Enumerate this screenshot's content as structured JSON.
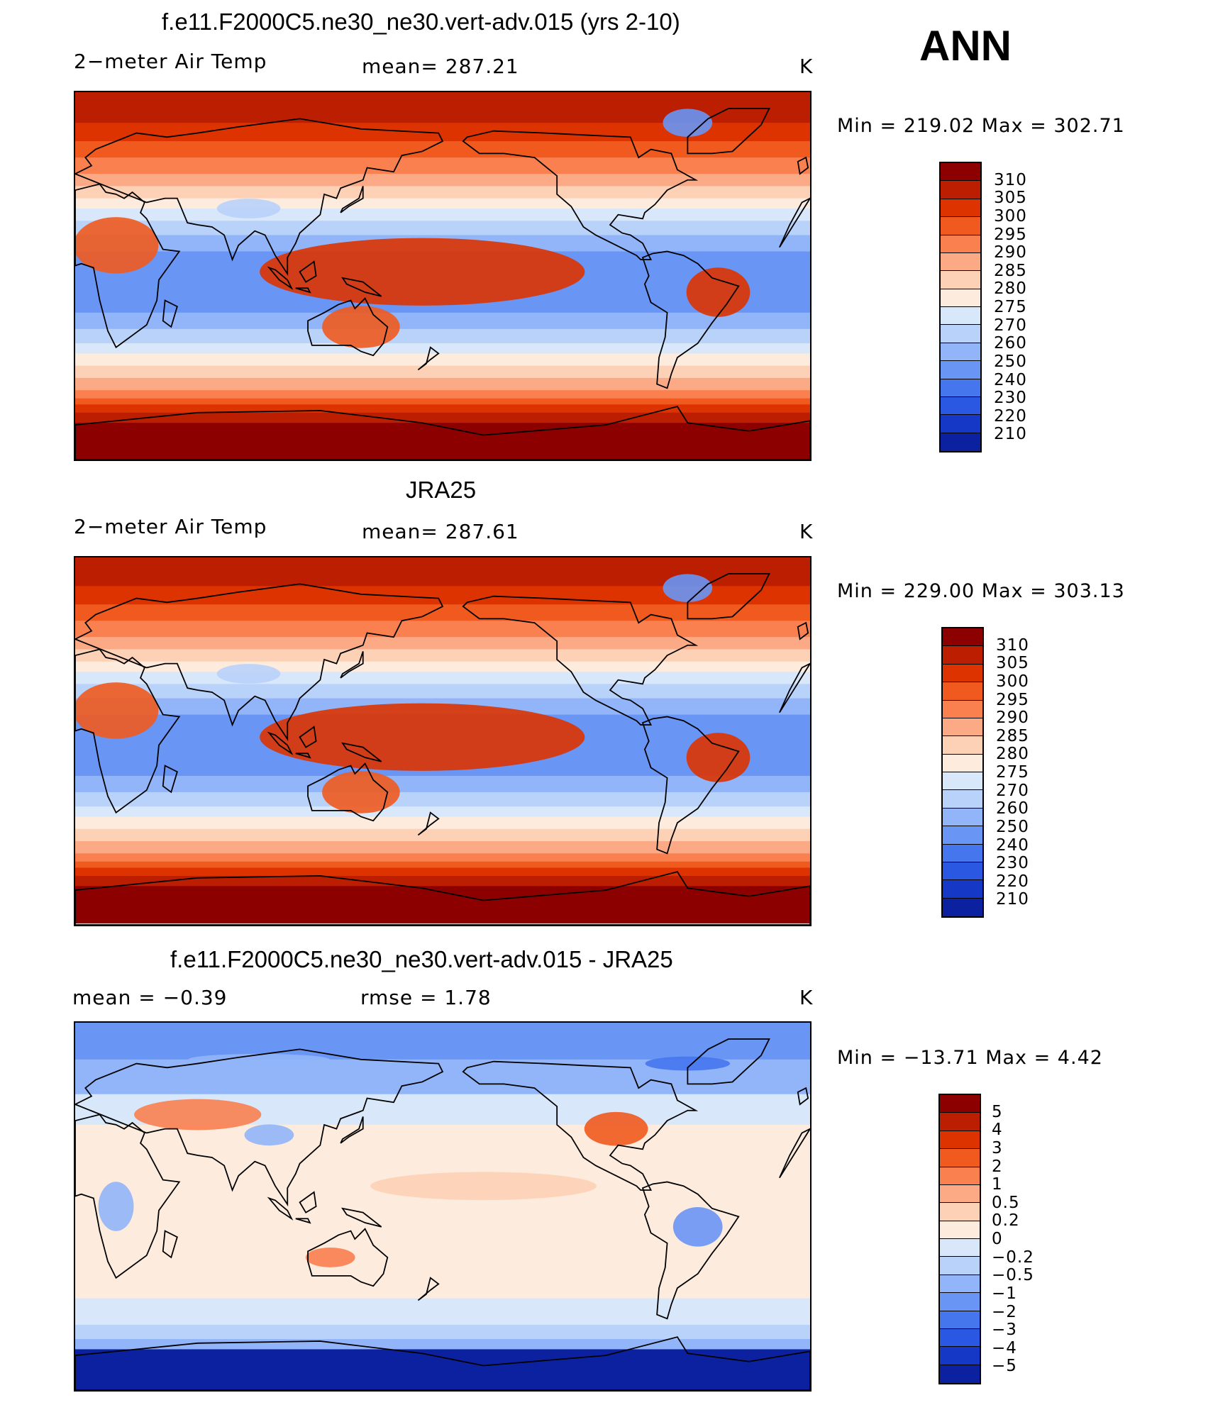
{
  "season": "ANN",
  "panels": [
    {
      "id": "model",
      "title": "f.e11.F2000C5.ne30_ne30.vert-adv.015 (yrs 2-10)",
      "left_label": "2−meter Air Temp",
      "center_label": "mean=  287.21",
      "units": "K",
      "minmax": "Min  =  219.02  Max  =  302.71"
    },
    {
      "id": "obs",
      "title": "JRA25",
      "left_label": "2−meter Air Temp",
      "center_label": "mean=  287.61",
      "units": "K",
      "minmax": "Min  =  229.00  Max  =  303.13"
    },
    {
      "id": "diff",
      "title": "f.e11.F2000C5.ne30_ne30.vert-adv.015 - JRA25",
      "left_label": "mean  =    −0.39",
      "center_label": "rmse  =     1.78",
      "units": "K",
      "minmax": "Min  =  −13.71  Max  =     4.42"
    }
  ],
  "chart_data": [
    {
      "type": "heatmap",
      "title": "f.e11.F2000C5.ne30_ne30.vert-adv.015 (yrs 2-10)",
      "variable": "2−meter Air Temp",
      "units": "K",
      "mean": 287.21,
      "min": 219.02,
      "max": 302.71,
      "colorbar_levels": [
        310,
        305,
        300,
        295,
        290,
        285,
        280,
        275,
        270,
        260,
        250,
        240,
        230,
        220,
        210
      ],
      "colorbar_colors": [
        "#8c0000",
        "#bb1e00",
        "#dc3300",
        "#f05a1e",
        "#fa8050",
        "#fcaa86",
        "#fdd1b5",
        "#fdebdd",
        "#d8e7fa",
        "#b9d2f9",
        "#91b5f8",
        "#6995f4",
        "#4676ee",
        "#2a58e3",
        "#1638c6",
        "#0c21a0"
      ]
    },
    {
      "type": "heatmap",
      "title": "JRA25",
      "variable": "2−meter Air Temp",
      "units": "K",
      "mean": 287.61,
      "min": 229.0,
      "max": 303.13,
      "colorbar_levels": [
        310,
        305,
        300,
        295,
        290,
        285,
        280,
        275,
        270,
        260,
        250,
        240,
        230,
        220,
        210
      ],
      "colorbar_colors": [
        "#8c0000",
        "#bb1e00",
        "#dc3300",
        "#f05a1e",
        "#fa8050",
        "#fcaa86",
        "#fdd1b5",
        "#fdebdd",
        "#d8e7fa",
        "#b9d2f9",
        "#91b5f8",
        "#6995f4",
        "#4676ee",
        "#2a58e3",
        "#1638c6",
        "#0c21a0"
      ]
    },
    {
      "type": "heatmap",
      "title": "f.e11.F2000C5.ne30_ne30.vert-adv.015 - JRA25",
      "units": "K",
      "mean": -0.39,
      "rmse": 1.78,
      "min": -13.71,
      "max": 4.42,
      "colorbar_levels": [
        "5",
        "4",
        "3",
        "2",
        "1",
        "0.5",
        "0.2",
        "0",
        "−0.2",
        "−0.5",
        "−1",
        "−2",
        "−3",
        "−4",
        "−5"
      ],
      "colorbar_colors": [
        "#8c0000",
        "#bb1e00",
        "#dc3300",
        "#f05a1e",
        "#fa8050",
        "#fcaa86",
        "#fdd1b5",
        "#fdebdd",
        "#d8e7fa",
        "#b9d2f9",
        "#91b5f8",
        "#6995f4",
        "#4676ee",
        "#2a58e3",
        "#1638c6",
        "#0c21a0"
      ]
    }
  ]
}
